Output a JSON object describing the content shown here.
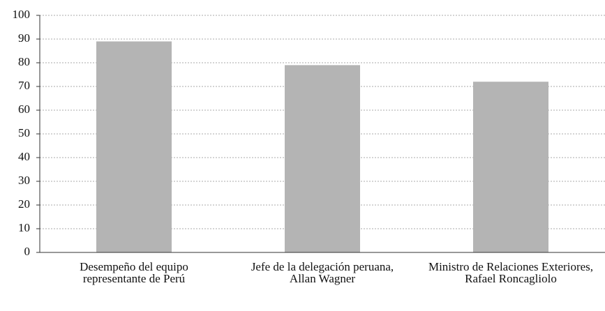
{
  "chart_data": {
    "type": "bar",
    "categories": [
      "Desempeño del equipo representante de Perú",
      "Jefe de la delegación peruana, Allan Wagner",
      "Ministro de Relaciones Exteriores, Rafael Roncagliolo"
    ],
    "values": [
      89,
      79,
      72
    ],
    "color": "#b4b4b4",
    "ylim": [
      0,
      100
    ],
    "yticks": [
      0,
      10,
      20,
      30,
      40,
      50,
      60,
      70,
      80,
      90,
      100
    ],
    "grid": true
  }
}
